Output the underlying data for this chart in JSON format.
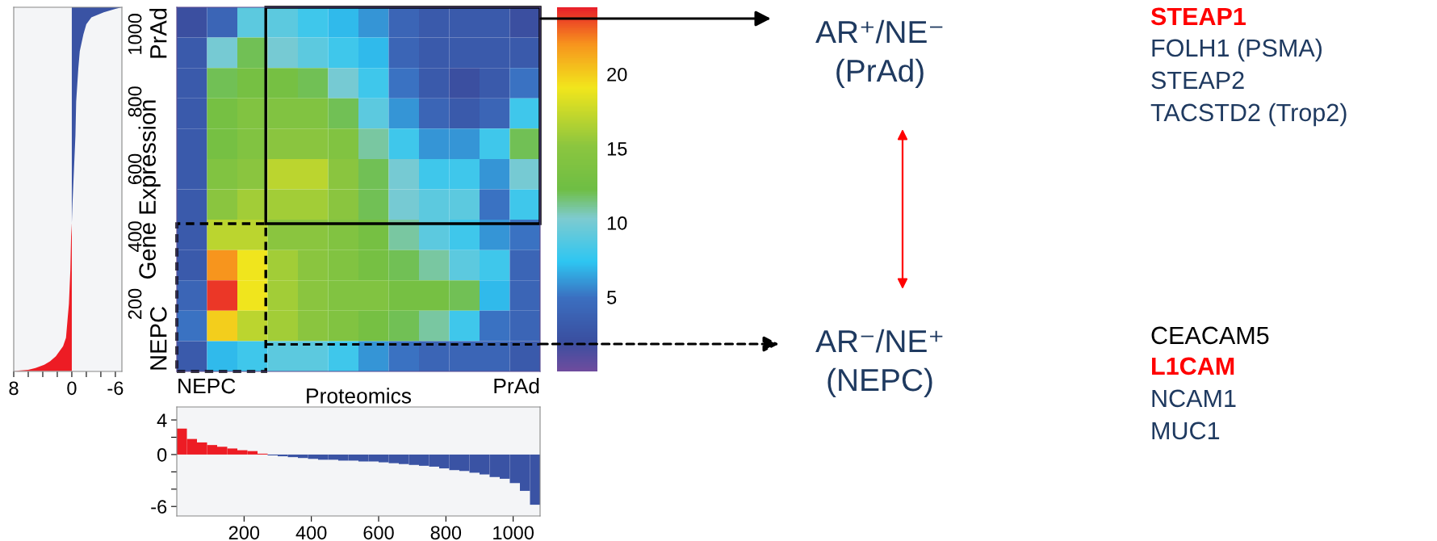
{
  "chart_data": [
    {
      "type": "area",
      "orientation": "horizontal",
      "ylim": [
        0,
        1080
      ],
      "series": [
        {
          "color": "#ed1c24",
          "x": [
            1,
            5,
            10,
            20,
            30,
            45,
            60,
            75,
            100,
            150,
            200,
            300,
            400,
            440
          ],
          "values": [
            8,
            6,
            5,
            3.8,
            3,
            2.2,
            1.7,
            1.2,
            0.8,
            0.6,
            0.4,
            0.2,
            0.1,
            0
          ]
        },
        {
          "color": "#3a53a4",
          "x": [
            440,
            500,
            600,
            700,
            800,
            900,
            950,
            1000,
            1030,
            1050,
            1065,
            1075,
            1080
          ],
          "values": [
            0,
            -0.1,
            -0.3,
            -0.5,
            -0.6,
            -0.9,
            -1.1,
            -1.6,
            -2,
            -2.7,
            -4.4,
            -6,
            -6.9
          ]
        }
      ],
      "xlim": [
        8,
        -6.9
      ],
      "xticks": [
        8,
        {
          "value": 6,
          "label": null
        },
        {
          "value": 4,
          "label": null
        },
        {
          "value": 2,
          "label": null
        },
        0,
        {
          "value": -2,
          "label": null
        },
        {
          "value": -4,
          "label": null
        },
        -6
      ],
      "tick_labels": "x"
    },
    {
      "type": "heatmap",
      "xlabel": "Proteomics",
      "ylabel": "Gene Expression",
      "annotations": [
        "NEPC",
        "PrAd",
        "NEPC",
        "PrAd"
      ],
      "xlim": [
        0,
        1080
      ],
      "ylim": [
        0,
        1080
      ],
      "yticks": [
        200,
        400,
        600,
        800,
        1000
      ],
      "tick_labels": "y",
      "ref_lines": [
        {
          "axis": "y",
          "value": 80,
          "color": "#000000",
          "line_style": "dashed"
        }
      ],
      "cells": [
        [
          2,
          4,
          9,
          9,
          8,
          7,
          6,
          4,
          3,
          3,
          3,
          2
        ],
        [
          3,
          10,
          12,
          10,
          9,
          8,
          7,
          4,
          3,
          3,
          3,
          3
        ],
        [
          3,
          12,
          13,
          13,
          12,
          10,
          8,
          5,
          3,
          2,
          3,
          5
        ],
        [
          3,
          13,
          14,
          14,
          14,
          12,
          9,
          6,
          4,
          3,
          4,
          8
        ],
        [
          3,
          13,
          14,
          15,
          15,
          14,
          11,
          8,
          6,
          6,
          8,
          12
        ],
        [
          3,
          14,
          15,
          17,
          17,
          15,
          12,
          10,
          8,
          8,
          6,
          10
        ],
        [
          3,
          15,
          16,
          16,
          16,
          15,
          12,
          10,
          9,
          9,
          5,
          8
        ],
        [
          3,
          17,
          17,
          15,
          15,
          14,
          13,
          11,
          9,
          8,
          6,
          5
        ],
        [
          3,
          22,
          19,
          16,
          15,
          14,
          13,
          12,
          11,
          9,
          8,
          4
        ],
        [
          4,
          24,
          19,
          16,
          15,
          14,
          14,
          13,
          13,
          12,
          7,
          4
        ],
        [
          5,
          20,
          17,
          16,
          15,
          14,
          13,
          12,
          11,
          8,
          5,
          4
        ],
        [
          3,
          7,
          8,
          9,
          9,
          8,
          6,
          5,
          4,
          4,
          4,
          3
        ]
      ],
      "clim": [
        0,
        24.5
      ],
      "cticks": [
        5,
        10,
        15,
        20
      ]
    },
    {
      "type": "bar",
      "x": [
        15,
        45,
        75,
        105,
        135,
        165,
        195,
        225,
        255,
        285,
        315,
        345,
        375,
        405,
        435,
        465,
        495,
        525,
        555,
        585,
        615,
        645,
        675,
        705,
        735,
        765,
        795,
        825,
        855,
        885,
        915,
        945,
        975,
        1005,
        1035,
        1065
      ],
      "values": [
        3,
        1.8,
        1.4,
        1.1,
        0.9,
        0.7,
        0.5,
        0.4,
        0.1,
        -0.1,
        -0.2,
        -0.3,
        -0.4,
        -0.5,
        -0.6,
        -0.6,
        -0.7,
        -0.7,
        -0.8,
        -0.8,
        -0.9,
        -1.0,
        -1.1,
        -1.2,
        -1.3,
        -1.4,
        -1.6,
        -1.8,
        -1.9,
        -2.1,
        -2.3,
        -2.6,
        -2.8,
        -3.3,
        -4.2,
        -5.8
      ],
      "colors": [
        "#ed1c24",
        "#ed1c24",
        "#ed1c24",
        "#ed1c24",
        "#ed1c24",
        "#ed1c24",
        "#ed1c24",
        "#ed1c24",
        "#ed1c24",
        "#3a53a4",
        "#3a53a4",
        "#3a53a4",
        "#3a53a4",
        "#3a53a4",
        "#3a53a4",
        "#3a53a4",
        "#3a53a4",
        "#3a53a4",
        "#3a53a4",
        "#3a53a4",
        "#3a53a4",
        "#3a53a4",
        "#3a53a4",
        "#3a53a4",
        "#3a53a4",
        "#3a53a4",
        "#3a53a4",
        "#3a53a4",
        "#3a53a4",
        "#3a53a4",
        "#3a53a4",
        "#3a53a4",
        "#3a53a4",
        "#3a53a4",
        "#3a53a4",
        "#3a53a4"
      ],
      "xlim": [
        0,
        1080
      ],
      "xticks": [
        200,
        400,
        600,
        800,
        1000
      ],
      "ylim": [
        -7.1,
        5.5
      ],
      "yticks": [
        4,
        {
          "value": 2,
          "label": null
        },
        0,
        {
          "value": -2,
          "label": null
        },
        {
          "value": -4,
          "label": null
        },
        -6
      ]
    },
    {
      "type": "other",
      "annotations": [
        "AR⁺/NE⁻",
        "(PrAd)",
        "AR⁻/NE⁺",
        "(NEPC)",
        "STEAP1",
        "FOLH1 (PSMA)",
        "STEAP2",
        "TACSTD2 (Trop2)",
        "CEACAM5",
        "L1CAM",
        "NCAM1",
        "MUC1"
      ],
      "colors": [
        "#1f3a60",
        "#1f3a60",
        "#1f3a60",
        "#1f3a60",
        "#ff0000",
        "#1f3a60",
        "#1f3a60",
        "#1f3a60",
        "#000000",
        "#ff0000",
        "#1f3a60",
        "#1f3a60"
      ]
    }
  ]
}
